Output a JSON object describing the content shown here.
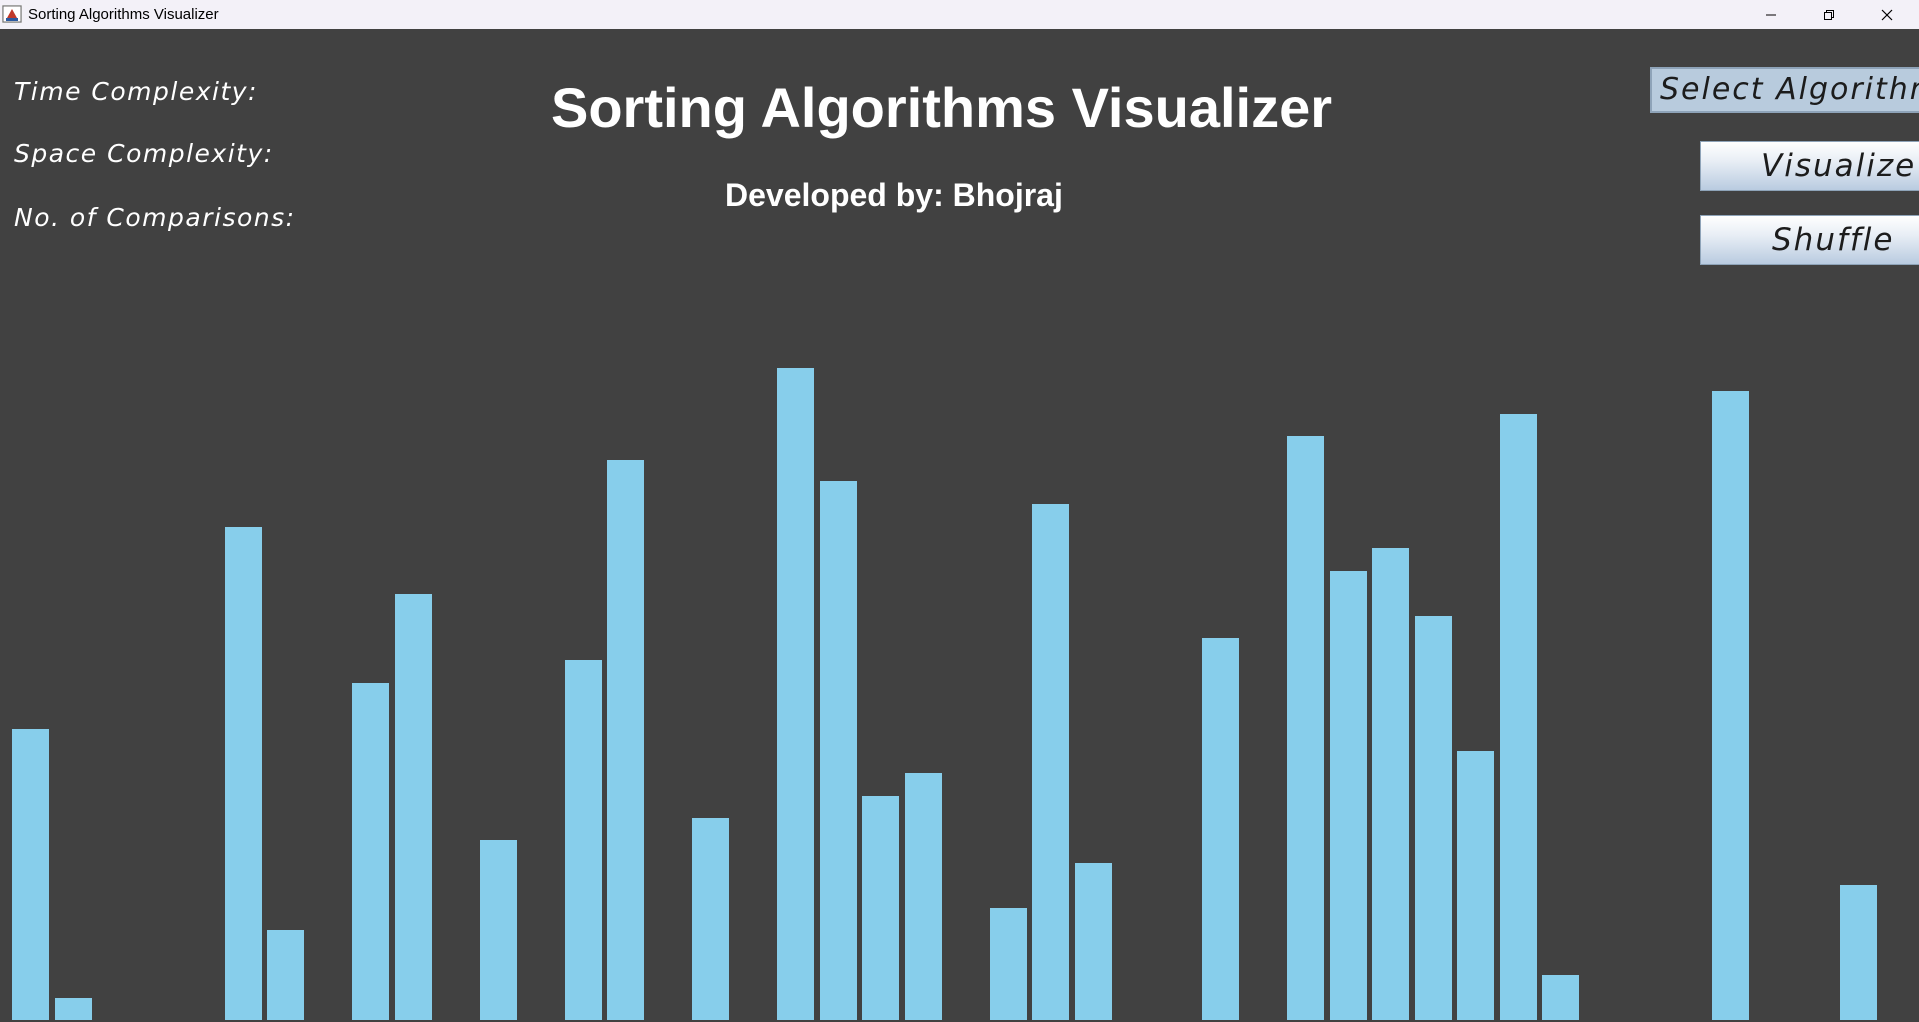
{
  "window": {
    "title": "Sorting Algorithms Visualizer",
    "controls": [
      "minimize-icon",
      "restore-icon",
      "close-icon"
    ]
  },
  "info": {
    "time_complexity_label": "Time Complexity:",
    "space_complexity_label": "Space Complexity:",
    "comparisons_label": "No. of Comparisons:"
  },
  "header": {
    "title": "Sorting Algorithms Visualizer",
    "subtitle": "Developed by: Bhojraj"
  },
  "controls": {
    "select_label": "Select Algorithm",
    "visualize_label": "Visualize",
    "shuffle_label": "Shuffle"
  },
  "colors": {
    "background": "#414141",
    "bar": "#87ceeb",
    "titlebar": "#f3f1f8"
  },
  "chart_data": {
    "type": "bar",
    "description_values_relative_to_max": true,
    "values": [
      291,
      22,
      0,
      0,
      0,
      493,
      90,
      0,
      337,
      426,
      0,
      180,
      0,
      360,
      560,
      0,
      202,
      0,
      652,
      539,
      224,
      247,
      0,
      112,
      516,
      157,
      0,
      0,
      382,
      0,
      584,
      449,
      472,
      404,
      269,
      606,
      45,
      0,
      0,
      0,
      629,
      0,
      0,
      135,
      0
    ]
  }
}
